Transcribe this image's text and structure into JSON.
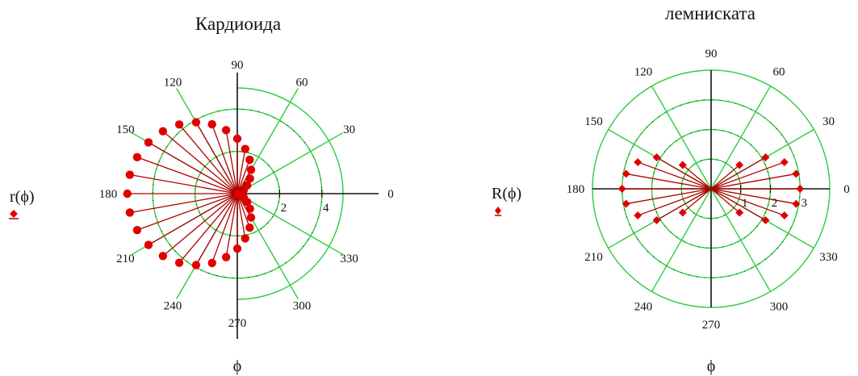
{
  "chart_data": [
    {
      "type": "scatter",
      "subtype": "polar",
      "title": "Кардиоида",
      "ylabel": "r(ϕ)",
      "xlabel": "ϕ",
      "angle_labels": [
        "0",
        "30",
        "60",
        "90",
        "120",
        "150",
        "180",
        "210",
        "240",
        "270",
        "300",
        "330"
      ],
      "radial_ticks": [
        "2",
        "4"
      ],
      "radial_tick_values": [
        2,
        4
      ],
      "rmax": 5,
      "angle_step_deg": 10,
      "formula": "r = a*(1 - cos(phi)), a = 2.6",
      "series": [
        {
          "theta_deg": [
            0,
            10,
            20,
            30,
            40,
            50,
            60,
            70,
            80,
            90,
            100,
            110,
            120,
            130,
            140,
            150,
            160,
            170,
            180,
            190,
            200,
            210,
            220,
            230,
            240,
            250,
            260,
            270,
            280,
            290,
            300,
            310,
            320,
            330,
            340,
            350
          ],
          "r": [
            0.0,
            0.04,
            0.16,
            0.35,
            0.61,
            0.93,
            1.3,
            1.71,
            2.15,
            2.6,
            3.05,
            3.49,
            3.9,
            4.27,
            4.59,
            4.85,
            5.04,
            5.16,
            5.2,
            5.16,
            5.04,
            4.85,
            4.59,
            4.27,
            3.9,
            3.49,
            3.05,
            2.6,
            2.15,
            1.71,
            1.3,
            0.93,
            0.61,
            0.35,
            0.16,
            0.04
          ]
        }
      ],
      "colors": {
        "series": "#e00000",
        "line": "#b00000",
        "grid": "#2ecc40",
        "axis": "#111111"
      }
    },
    {
      "type": "scatter",
      "subtype": "polar",
      "title": "лемниската",
      "ylabel": "R(ϕ)",
      "xlabel": "ϕ",
      "angle_labels": [
        "0",
        "30",
        "60",
        "90",
        "120",
        "150",
        "180",
        "210",
        "240",
        "270",
        "300",
        "330"
      ],
      "radial_ticks": [
        "1",
        "2",
        "3"
      ],
      "radial_tick_values": [
        1,
        2,
        3
      ],
      "rmax": 4,
      "formula": "R = a*sqrt(cos(2*phi)), a = 3",
      "series": [
        {
          "theta_deg": [
            0,
            10,
            20,
            30,
            40,
            140,
            150,
            160,
            170,
            180,
            190,
            200,
            210,
            220,
            320,
            330,
            340,
            350
          ],
          "r": [
            3.0,
            2.91,
            2.63,
            2.12,
            1.25,
            1.25,
            2.12,
            2.63,
            2.91,
            3.0,
            2.91,
            2.63,
            2.12,
            1.25,
            1.25,
            2.12,
            2.63,
            2.91
          ]
        }
      ],
      "colors": {
        "series": "#e00000",
        "line": "#b00000",
        "grid": "#2ecc40",
        "axis": "#111111"
      }
    }
  ]
}
